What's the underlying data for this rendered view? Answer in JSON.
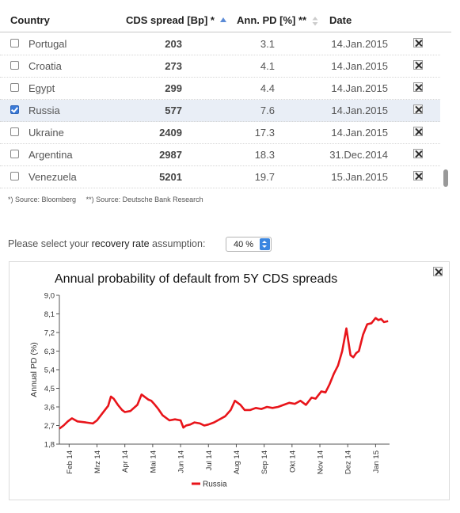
{
  "table": {
    "headers": {
      "country": "Country",
      "cds": "CDS spread [Bp] *",
      "pd": "Ann. PD [%] **",
      "date": "Date"
    },
    "rows": [
      {
        "country": "Portugal",
        "cds": "203",
        "pd": "3.1",
        "date": "14.Jan.2015",
        "checked": false
      },
      {
        "country": "Croatia",
        "cds": "273",
        "pd": "4.1",
        "date": "14.Jan.2015",
        "checked": false
      },
      {
        "country": "Egypt",
        "cds": "299",
        "pd": "4.4",
        "date": "14.Jan.2015",
        "checked": false
      },
      {
        "country": "Russia",
        "cds": "577",
        "pd": "7.6",
        "date": "14.Jan.2015",
        "checked": true
      },
      {
        "country": "Ukraine",
        "cds": "2409",
        "pd": "17.3",
        "date": "14.Jan.2015",
        "checked": false
      },
      {
        "country": "Argentina",
        "cds": "2987",
        "pd": "18.3",
        "date": "31.Dec.2014",
        "checked": false
      },
      {
        "country": "Venezuela",
        "cds": "5201",
        "pd": "19.7",
        "date": "15.Jan.2015",
        "checked": false
      }
    ]
  },
  "sources": {
    "bloomberg": "*) Source: Bloomberg",
    "dbr": "**) Source: Deutsche Bank Research"
  },
  "recovery": {
    "prefix": "Please select your ",
    "highlight": "recovery rate",
    "suffix": " assumption:",
    "value": "40 %"
  },
  "icons": {
    "excel": "excel-icon",
    "sort_asc": "sort-ascending-icon",
    "sort_both": "sort-icon",
    "select_arrows": "select-arrows-icon"
  },
  "colors": {
    "series": "#e8141a",
    "selected_row": "#e9eef6",
    "checkbox_checked": "#3b7ad8",
    "sort_active": "#5b8bd6"
  },
  "chart_data": {
    "type": "line",
    "title": "Annual probability of default from 5Y CDS spreads",
    "ylabel": "Annual PD (%)",
    "xlabel": "",
    "ylim": [
      1.8,
      9.0
    ],
    "yticks": [
      "1,8",
      "2,7",
      "3,6",
      "4,5",
      "5,4",
      "6,3",
      "7,2",
      "8,1",
      "9,0"
    ],
    "xticks": [
      "Feb 14",
      "Mrz 14",
      "Apr 14",
      "Mai 14",
      "Jun 14",
      "Jul 14",
      "Aug 14",
      "Sep 14",
      "Okt 14",
      "Nov 14",
      "Dez 14",
      "Jan 15"
    ],
    "xtick_positions": [
      1,
      2,
      3,
      4,
      5,
      6,
      7,
      8,
      9,
      10,
      11,
      12
    ],
    "xlim": [
      0.65,
      12.5
    ],
    "legend_position": "bottom-center",
    "grid": false,
    "series": [
      {
        "name": "Russia",
        "x": [
          0.65,
          0.8,
          0.95,
          1.1,
          1.3,
          1.6,
          1.85,
          2.0,
          2.2,
          2.4,
          2.5,
          2.6,
          2.75,
          2.9,
          3.0,
          3.2,
          3.45,
          3.6,
          3.75,
          3.85,
          3.95,
          4.05,
          4.2,
          4.35,
          4.6,
          4.8,
          5.0,
          5.1,
          5.2,
          5.35,
          5.5,
          5.7,
          5.85,
          6.0,
          6.2,
          6.4,
          6.6,
          6.8,
          6.95,
          7.05,
          7.15,
          7.3,
          7.5,
          7.7,
          7.9,
          8.1,
          8.3,
          8.5,
          8.7,
          8.9,
          9.1,
          9.3,
          9.5,
          9.7,
          9.85,
          10.05,
          10.2,
          10.35,
          10.5,
          10.65,
          10.8,
          10.95,
          11.1,
          11.2,
          11.3,
          11.4,
          11.55,
          11.7,
          11.85,
          12.0,
          12.1,
          12.2,
          12.3,
          12.45
        ],
        "values": [
          2.55,
          2.7,
          2.9,
          3.05,
          2.9,
          2.85,
          2.8,
          2.95,
          3.3,
          3.65,
          4.1,
          4.0,
          3.7,
          3.45,
          3.35,
          3.4,
          3.7,
          4.2,
          4.05,
          3.95,
          3.9,
          3.75,
          3.5,
          3.2,
          2.95,
          3.0,
          2.95,
          2.6,
          2.7,
          2.75,
          2.85,
          2.8,
          2.7,
          2.75,
          2.85,
          3.0,
          3.15,
          3.45,
          3.9,
          3.8,
          3.7,
          3.45,
          3.45,
          3.55,
          3.5,
          3.6,
          3.55,
          3.6,
          3.7,
          3.8,
          3.75,
          3.9,
          3.7,
          4.05,
          4.0,
          4.35,
          4.3,
          4.7,
          5.2,
          5.6,
          6.3,
          7.4,
          6.1,
          6.0,
          6.2,
          6.3,
          7.1,
          7.6,
          7.65,
          7.9,
          7.8,
          7.85,
          7.7,
          7.75
        ]
      }
    ]
  }
}
